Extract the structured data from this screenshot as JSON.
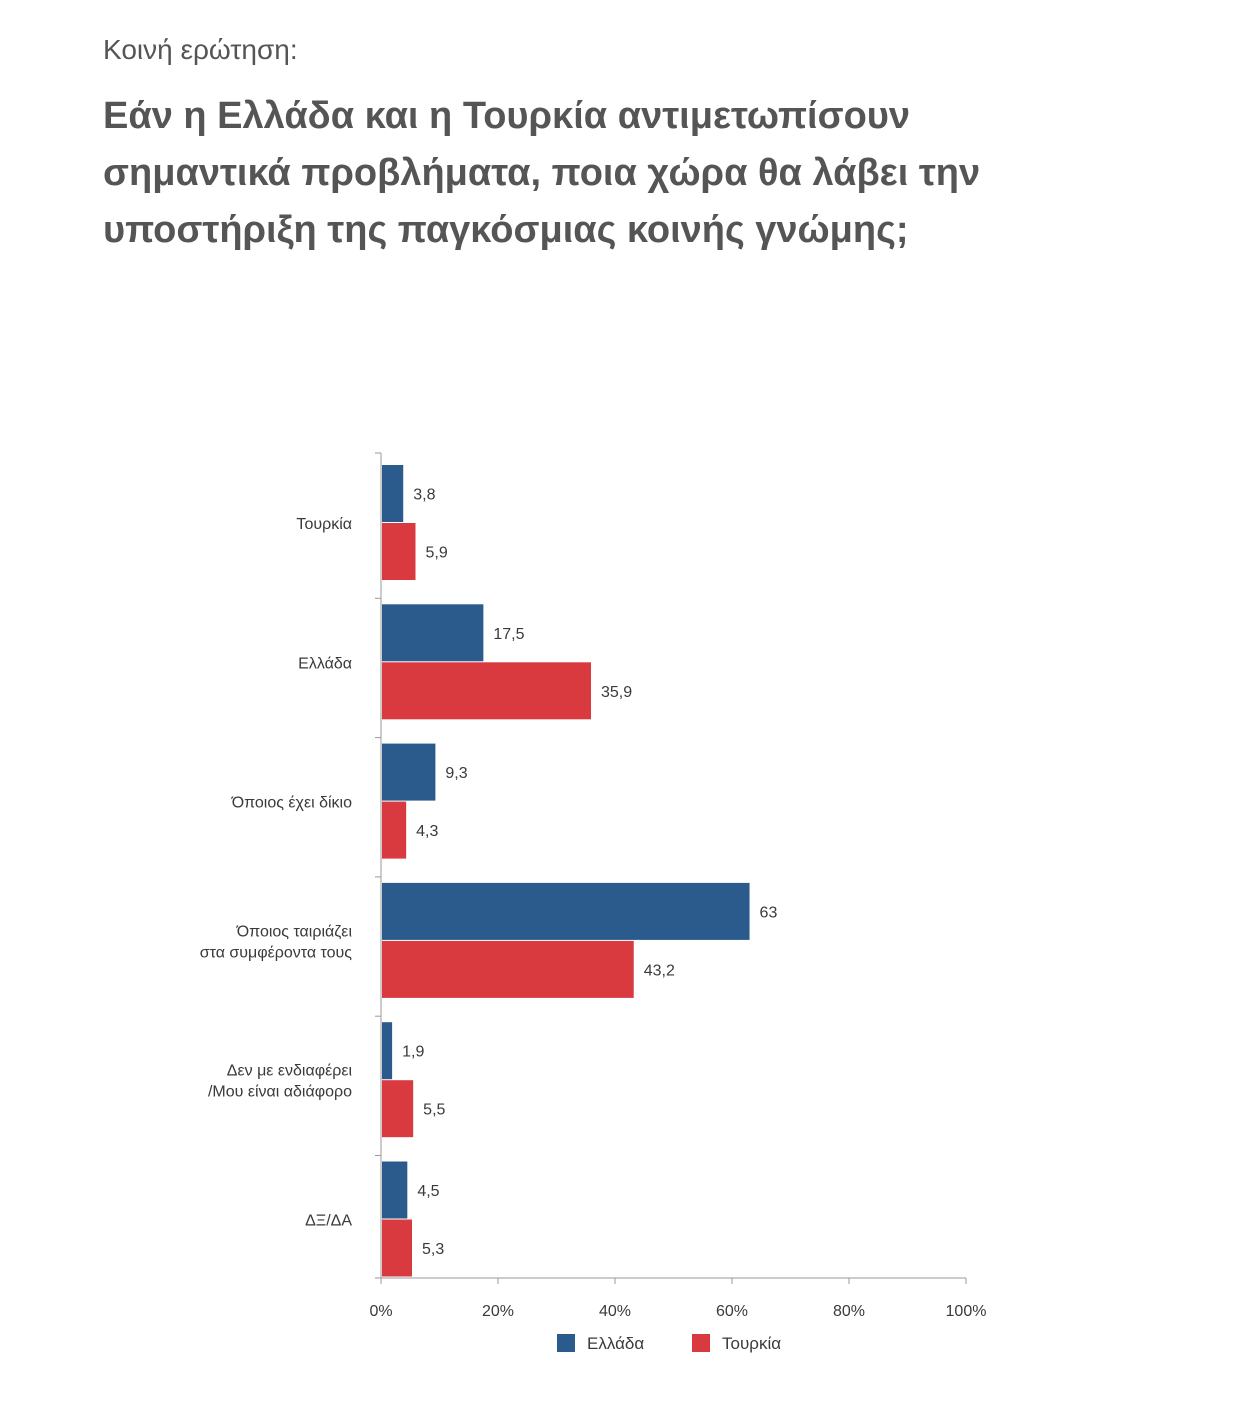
{
  "header": {
    "subtitle": "Κοινή ερώτηση:",
    "title": "Εάν η Ελλάδα και η Τουρκία αντιμετωπίσουν σημαντικά προβλήματα, ποια χώρα θα λάβει την υποστήριξη της παγκόσμιας κοινής γνώμης;"
  },
  "chart_data": {
    "type": "bar",
    "orientation": "horizontal",
    "categories": [
      [
        "Τουρκία"
      ],
      [
        "Ελλάδα"
      ],
      [
        "Όποιος έχει δίκιο"
      ],
      [
        "Όποιος ταιριάζει",
        "στα συμφέροντα τους"
      ],
      [
        "Δεν με ενδιαφέρει",
        "/Μου είναι αδιάφορο"
      ],
      [
        "ΔΞ/ΔΑ"
      ]
    ],
    "series": [
      {
        "name": "Ελλάδα",
        "color": "#2a5b8c",
        "values": [
          3.8,
          17.5,
          9.3,
          63,
          1.9,
          4.5
        ],
        "labels": [
          "3,8",
          "17,5",
          "9,3",
          "63",
          "1,9",
          "4,5"
        ]
      },
      {
        "name": "Τουρκία",
        "color": "#d93a3f",
        "values": [
          5.9,
          35.9,
          4.3,
          43.2,
          5.5,
          5.3
        ],
        "labels": [
          "5,9",
          "35,9",
          "4,3",
          "43,2",
          "5,5",
          "5,3"
        ]
      }
    ],
    "xlim": [
      0,
      100
    ],
    "xticks": [
      0,
      20,
      40,
      60,
      80,
      100
    ],
    "xtick_labels": [
      "0%",
      "20%",
      "40%",
      "60%",
      "80%",
      "100%"
    ],
    "grid": false,
    "legend": "bottom-center"
  }
}
